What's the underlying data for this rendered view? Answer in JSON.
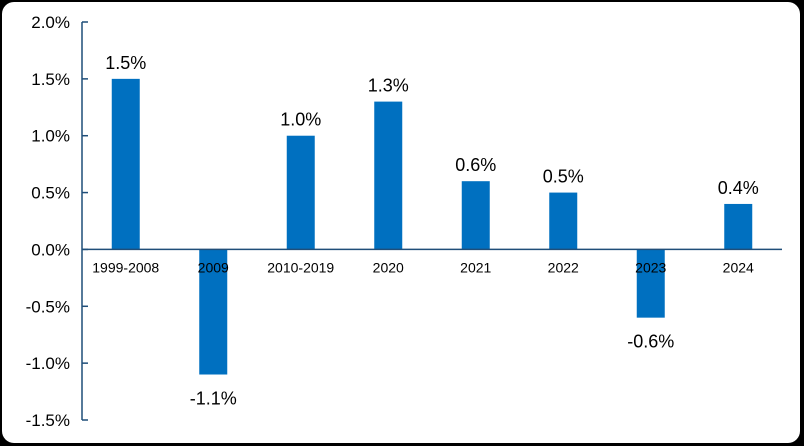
{
  "chart_data": {
    "type": "bar",
    "title": "",
    "xlabel": "",
    "ylabel": "",
    "categories": [
      "1999-2008",
      "2009",
      "2010-2019",
      "2020",
      "2021",
      "2022",
      "2023",
      "2024"
    ],
    "values": [
      1.5,
      -1.1,
      1.0,
      1.3,
      0.6,
      0.5,
      -0.6,
      0.4
    ],
    "data_labels": [
      "1.5%",
      "-1.1%",
      "1.0%",
      "1.3%",
      "0.6%",
      "0.5%",
      "-0.6%",
      "0.4%"
    ],
    "ylim": [
      -1.5,
      2.0
    ],
    "yticks": [
      2.0,
      1.5,
      1.0,
      0.5,
      0.0,
      -0.5,
      -1.0,
      -1.5
    ],
    "ytick_labels": [
      "2.0%",
      "1.5%",
      "1.0%",
      "0.5%",
      "0.0%",
      "-0.5%",
      "-1.0%",
      "-1.5%"
    ],
    "grid": false,
    "legend": false,
    "bar_color": "#0070C0",
    "axis_color": "#1F4E79",
    "background_color": "#FFFFFF"
  }
}
